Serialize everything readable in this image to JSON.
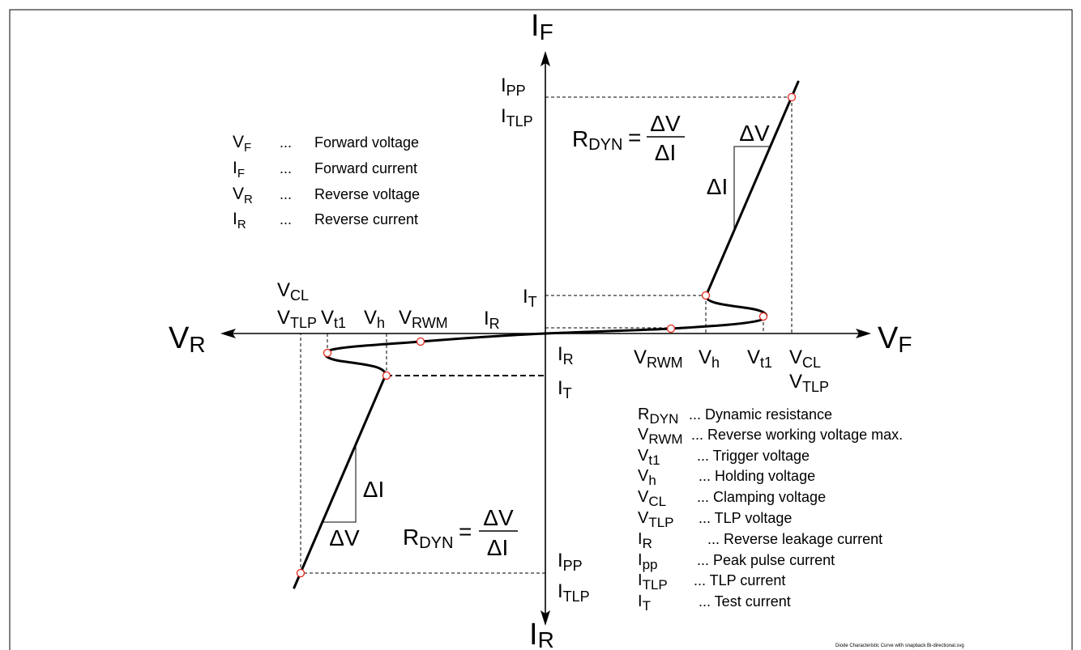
{
  "axes": {
    "forward_current": {
      "main": "I",
      "sub": "F"
    },
    "reverse_current": {
      "main": "I",
      "sub": "R"
    },
    "reverse_voltage": {
      "main": "V",
      "sub": "R"
    },
    "forward_voltage": {
      "main": "V",
      "sub": "F"
    }
  },
  "labels": {
    "left": {
      "i_pp": {
        "main": "I",
        "sub": "PP"
      },
      "i_tlp": {
        "main": "I",
        "sub": "TLP"
      },
      "i_t": {
        "main": "I",
        "sub": "T"
      },
      "v_cl": {
        "main": "V",
        "sub": "CL"
      },
      "v_tlp": {
        "main": "V",
        "sub": "TLP"
      },
      "v_t1": {
        "main": "V",
        "sub": "t1"
      },
      "v_h": {
        "main": "V",
        "sub": "h"
      },
      "v_rwm": {
        "main": "V",
        "sub": "RWM"
      },
      "i_r": {
        "main": "I",
        "sub": "R"
      }
    },
    "right": {
      "i_r": {
        "main": "I",
        "sub": "R"
      },
      "i_t": {
        "main": "I",
        "sub": "T"
      },
      "v_rwm": {
        "main": "V",
        "sub": "RWM"
      },
      "v_h": {
        "main": "V",
        "sub": "h"
      },
      "v_t1": {
        "main": "V",
        "sub": "t1"
      },
      "v_cl": {
        "main": "V",
        "sub": "CL"
      },
      "v_tlp": {
        "main": "V",
        "sub": "TLP"
      },
      "i_pp": {
        "main": "I",
        "sub": "PP"
      },
      "i_tlp": {
        "main": "I",
        "sub": "TLP"
      }
    }
  },
  "formula": {
    "main": "R",
    "sub": "DYN",
    "equals": "=",
    "numerator": "ΔV",
    "denominator": "ΔI"
  },
  "slope_triangle": {
    "delta_v": "ΔV",
    "delta_i": "ΔI"
  },
  "legend_top": [
    {
      "main": "V",
      "sub": "F",
      "dots": "...",
      "desc": "Forward voltage"
    },
    {
      "main": "I",
      "sub": "F",
      "dots": "...",
      "desc": "Forward current"
    },
    {
      "main": "V",
      "sub": "R",
      "dots": "...",
      "desc": "Reverse voltage"
    },
    {
      "main": "I",
      "sub": "R",
      "dots": "...",
      "desc": "Reverse current"
    }
  ],
  "legend_bottom": [
    {
      "main": "R",
      "sub": "DYN",
      "desc": "... Dynamic resistance"
    },
    {
      "main": "V",
      "sub": "RWM",
      "desc": "... Reverse working voltage max."
    },
    {
      "main": "V",
      "sub": "t1",
      "desc": "... Trigger voltage"
    },
    {
      "main": "V",
      "sub": "h",
      "desc": "... Holding voltage"
    },
    {
      "main": "V",
      "sub": "CL",
      "desc": "... Clamping voltage"
    },
    {
      "main": "V",
      "sub": "TLP",
      "desc": "... TLP voltage"
    },
    {
      "main": "I",
      "sub": "R",
      "desc": "... Reverse leakage current"
    },
    {
      "main": "I",
      "sub": "pp",
      "desc": "... Peak pulse current"
    },
    {
      "main": "I",
      "sub": "TLP",
      "desc": "... TLP current"
    },
    {
      "main": "I",
      "sub": "T",
      "desc": "... Test current"
    }
  ],
  "footer_filename": "Diode Characteristic Curve with snapback Bi-directional.svg",
  "colors": {
    "curve": "#000000",
    "marker_stroke": "#e3241b",
    "marker_fill": "#ffffff"
  }
}
